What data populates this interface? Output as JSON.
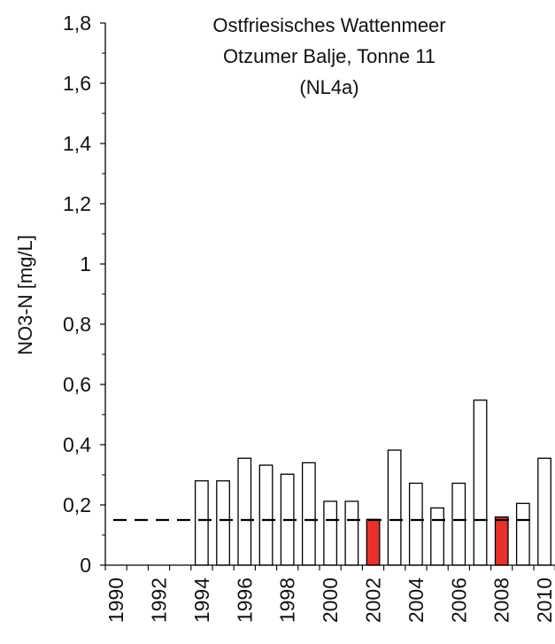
{
  "chart_data": {
    "type": "bar",
    "title_lines": [
      "Ostfriesisches Wattenmeer",
      "Otzumer Balje, Tonne 11",
      "(NL4a)"
    ],
    "xlabel": "",
    "ylabel": "NO3-N [mg/L]",
    "ylim": [
      0,
      1.8
    ],
    "yticks": [
      "0",
      "0,2",
      "0,4",
      "0,6",
      "0,8",
      "1",
      "1,2",
      "1,4",
      "1,6",
      "1,8"
    ],
    "ytick_values": [
      0,
      0.2,
      0.4,
      0.6,
      0.8,
      1.0,
      1.2,
      1.4,
      1.6,
      1.8
    ],
    "x_tick_labels": [
      "1990",
      "1992",
      "1994",
      "1996",
      "1998",
      "2000",
      "2002",
      "2004",
      "2006",
      "2008",
      "2010"
    ],
    "x": [
      1990,
      1991,
      1992,
      1993,
      1994,
      1995,
      1996,
      1997,
      1998,
      1999,
      2000,
      2001,
      2002,
      2003,
      2004,
      2005,
      2006,
      2007,
      2008,
      2009,
      2010
    ],
    "values": [
      null,
      null,
      null,
      null,
      0.28,
      0.28,
      0.355,
      0.332,
      0.302,
      0.34,
      0.212,
      0.212,
      0.152,
      0.382,
      0.272,
      0.19,
      0.272,
      0.548,
      0.16,
      0.205,
      0.355
    ],
    "highlighted_years": [
      2002,
      2008
    ],
    "reference_line": 0.15,
    "grid": false,
    "legend": "none",
    "colors": {
      "bar_fill": "#ffffff",
      "bar_highlight": "#e8312a",
      "bar_stroke": "#000000",
      "axis": "#000000",
      "reference_line": "#000000"
    }
  }
}
